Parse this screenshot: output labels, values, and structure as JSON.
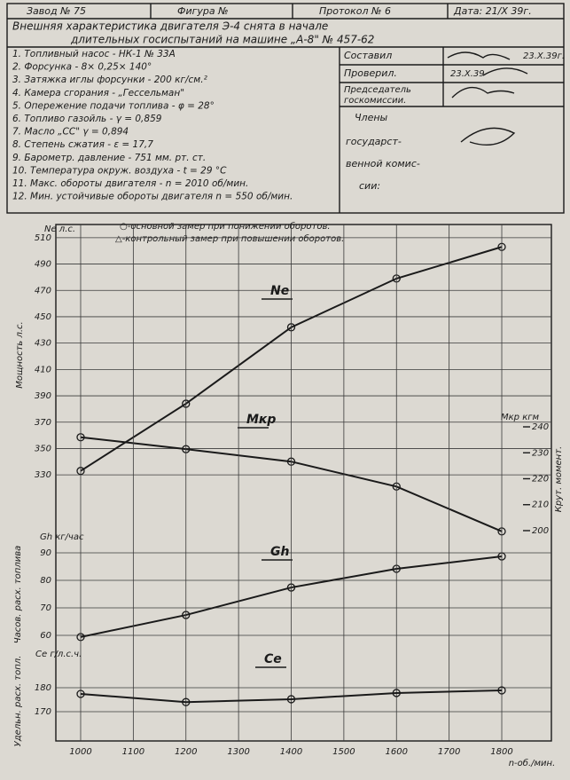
{
  "header": {
    "factory": "Завод № 75",
    "figure": "Фигура №",
    "protocol": "Протокол № 6",
    "date": "Дата: 21/X 39г.",
    "title_lines": [
      "Внешняя характеристика двигателя Э-4 снята в начале",
      "длительных госиспытаний на машине „А-8\" № 457-62"
    ]
  },
  "conditions": [
    "1. Топливный насос - НК-1 № 33А",
    "2. Форсунка - 8× 0,25× 140°",
    "3. Затяжка иглы форсунки - 200 кг/см.²",
    "4. Камера сгорания - „Гессельман\"",
    "5. Опережение подачи топлива - φ = 28°",
    "6. Топливо газойль - γ = 0,859",
    "7. Масло „СС\"   γ = 0,894",
    "8. Степень сжатия - ε = 17,7",
    "9. Барометр. давление - 751 мм. рт. ст.",
    "10. Температура окруж. воздуха - t = 29 °С",
    "11. Макс. обороты двигателя - n = 2010 об/мин.",
    "12. Мин. устойчивые обороты двигателя n = 550 об/мин."
  ],
  "signatures": {
    "compiled": "Составил",
    "compiled_date": "23.X.39г.",
    "checked": "Проверил.",
    "checked_date": "23.X.39",
    "chairman": [
      "Председатель",
      "госкомиссии."
    ],
    "members": [
      "Члены",
      "государст-",
      "венной комис-",
      "сии:"
    ]
  },
  "legend": [
    "○-основной замер при понижении оборотов.",
    "△-контрольный замер при повышении оборотов."
  ],
  "x_label": "n-об./мин.",
  "chart_data": [
    {
      "type": "line",
      "unit_label": "Ne л.с.",
      "ylabel": "Мощность л.с.",
      "axis": "left",
      "xlim": [
        950,
        1900
      ],
      "ylim": [
        320,
        520
      ],
      "yticks": [
        330,
        350,
        370,
        390,
        410,
        430,
        450,
        470,
        490,
        510
      ],
      "series": [
        {
          "name": "Ne",
          "color": "#1a1a1a",
          "x": [
            1000,
            1200,
            1400,
            1600,
            1800
          ],
          "values": [
            333,
            384,
            442,
            479,
            503
          ]
        }
      ]
    },
    {
      "type": "line",
      "unit_label": "Mкр кгм",
      "ylabel": "Крут. момент.",
      "axis": "right",
      "xlim": [
        950,
        1900
      ],
      "ylim": [
        195,
        245
      ],
      "yticks": [
        200,
        210,
        220,
        230,
        240
      ],
      "series": [
        {
          "name": "Мкр",
          "color": "#1a1a1a",
          "x": [
            1000,
            1200,
            1400,
            1600,
            1800
          ],
          "values": [
            236,
            231.4,
            226.6,
            217,
            199.7
          ]
        }
      ]
    },
    {
      "type": "line",
      "unit_label": "Gh кг/час",
      "ylabel": "Часов. расх. топлива",
      "axis": "left",
      "xlim": [
        950,
        1900
      ],
      "ylim": [
        55,
        95
      ],
      "yticks": [
        60,
        70,
        80,
        90
      ],
      "series": [
        {
          "name": "Gh",
          "color": "#1a1a1a",
          "x": [
            1000,
            1200,
            1400,
            1600,
            1800
          ],
          "values": [
            59.4,
            67.4,
            77.4,
            84.2,
            88.7
          ]
        }
      ]
    },
    {
      "type": "line",
      "unit_label": "Ce г/л.с.ч.",
      "ylabel": "Удельн. расх. топл.",
      "axis": "left",
      "xlim": [
        950,
        1900
      ],
      "ylim": [
        165,
        185
      ],
      "yticks": [
        170,
        180
      ],
      "xticks": [
        1000,
        1100,
        1200,
        1300,
        1400,
        1500,
        1600,
        1700,
        1800
      ],
      "series": [
        {
          "name": "Ce",
          "color": "#1a1a1a",
          "x": [
            1000,
            1200,
            1400,
            1600,
            1800
          ],
          "values": [
            177.4,
            174,
            175.2,
            177.8,
            178.9
          ]
        }
      ]
    }
  ]
}
